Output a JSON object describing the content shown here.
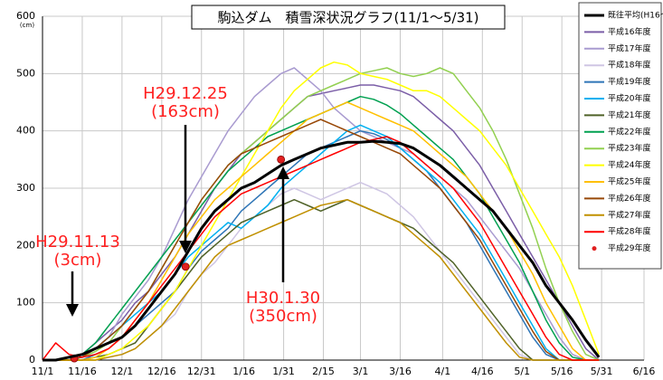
{
  "chart_data": {
    "type": "line",
    "title": "駒込ダム　積雪深状況グラフ(11/1～5/31)",
    "y_unit": "(cm)",
    "x": [
      0,
      5,
      10,
      15,
      20,
      25,
      30,
      35,
      40,
      45,
      50,
      55,
      60,
      65,
      70,
      75,
      80,
      85,
      90,
      95,
      100,
      105,
      110,
      115,
      120,
      125,
      130,
      135,
      140,
      145,
      150,
      155,
      160,
      165,
      170,
      175,
      180,
      185,
      190,
      195,
      200,
      205,
      210
    ],
    "xlim": [
      0,
      227
    ],
    "xticks": [
      {
        "value": 0,
        "label": "11/1"
      },
      {
        "value": 15,
        "label": "11/16"
      },
      {
        "value": 30,
        "label": "12/1"
      },
      {
        "value": 45,
        "label": "12/16"
      },
      {
        "value": 60,
        "label": "12/31"
      },
      {
        "value": 76,
        "label": "1/16"
      },
      {
        "value": 91,
        "label": "1/31"
      },
      {
        "value": 106,
        "label": "2/15"
      },
      {
        "value": 120,
        "label": "3/1"
      },
      {
        "value": 135,
        "label": "3/16"
      },
      {
        "value": 151,
        "label": "4/1"
      },
      {
        "value": 166,
        "label": "4/16"
      },
      {
        "value": 181,
        "label": "5/1"
      },
      {
        "value": 196,
        "label": "5/16"
      },
      {
        "value": 211,
        "label": "5/31"
      },
      {
        "value": 227,
        "label": "6/16"
      }
    ],
    "ylim": [
      0,
      600
    ],
    "yticks": [
      0,
      100,
      200,
      300,
      400,
      500,
      600
    ],
    "grid": true,
    "legend": "right",
    "series": [
      {
        "name": "既往平均(H16〜)",
        "color": "#000000",
        "width": 3,
        "values": [
          0,
          0,
          5,
          10,
          20,
          30,
          40,
          60,
          90,
          120,
          150,
          190,
          230,
          260,
          280,
          300,
          310,
          325,
          340,
          350,
          360,
          370,
          375,
          380,
          380,
          382,
          380,
          378,
          370,
          355,
          340,
          320,
          300,
          280,
          260,
          230,
          200,
          170,
          130,
          100,
          70,
          35,
          5
        ]
      },
      {
        "name": "平成16年度",
        "color": "#7b5ea7",
        "values": [
          0,
          0,
          0,
          10,
          30,
          50,
          70,
          100,
          120,
          150,
          180,
          220,
          260,
          300,
          330,
          360,
          380,
          400,
          420,
          440,
          460,
          465,
          470,
          475,
          480,
          480,
          475,
          470,
          460,
          440,
          420,
          400,
          370,
          340,
          300,
          260,
          220,
          180,
          140,
          100,
          60,
          20,
          0
        ]
      },
      {
        "name": "平成17年度",
        "color": "#a99bd0",
        "values": [
          0,
          0,
          0,
          5,
          20,
          40,
          80,
          110,
          140,
          180,
          230,
          280,
          320,
          360,
          400,
          430,
          460,
          480,
          500,
          510,
          490,
          470,
          440,
          420,
          400,
          390,
          380,
          370,
          360,
          340,
          320,
          300,
          280,
          250,
          220,
          190,
          160,
          120,
          80,
          40,
          10,
          0,
          0
        ]
      },
      {
        "name": "平成18年度",
        "color": "#cfc6e4",
        "values": [
          0,
          0,
          0,
          0,
          0,
          5,
          10,
          20,
          40,
          60,
          80,
          120,
          150,
          170,
          200,
          230,
          250,
          270,
          290,
          300,
          290,
          280,
          290,
          300,
          310,
          300,
          290,
          270,
          250,
          220,
          190,
          160,
          130,
          100,
          70,
          40,
          10,
          0,
          0,
          0,
          0,
          0,
          0
        ]
      },
      {
        "name": "平成19年度",
        "color": "#2e75b6",
        "values": [
          0,
          0,
          0,
          0,
          10,
          20,
          40,
          60,
          80,
          100,
          120,
          160,
          190,
          210,
          230,
          260,
          280,
          300,
          320,
          340,
          360,
          370,
          380,
          390,
          400,
          395,
          385,
          370,
          350,
          330,
          300,
          270,
          240,
          200,
          160,
          120,
          80,
          40,
          10,
          0,
          0,
          0,
          0
        ]
      },
      {
        "name": "平成20年度",
        "color": "#00b0f0",
        "values": [
          0,
          0,
          5,
          10,
          20,
          40,
          60,
          80,
          100,
          120,
          150,
          180,
          200,
          220,
          240,
          230,
          250,
          270,
          300,
          320,
          340,
          360,
          380,
          400,
          410,
          400,
          390,
          370,
          350,
          330,
          310,
          280,
          250,
          220,
          180,
          140,
          100,
          60,
          20,
          0,
          0,
          0,
          0
        ]
      },
      {
        "name": "平成21年度",
        "color": "#4f6228",
        "values": [
          0,
          0,
          0,
          0,
          5,
          10,
          20,
          30,
          60,
          90,
          120,
          150,
          180,
          200,
          220,
          240,
          250,
          260,
          270,
          280,
          270,
          260,
          270,
          280,
          270,
          260,
          250,
          240,
          230,
          210,
          190,
          170,
          140,
          110,
          80,
          50,
          20,
          0,
          0,
          0,
          0,
          0,
          0
        ]
      },
      {
        "name": "平成22年度",
        "color": "#00a050",
        "values": [
          0,
          0,
          0,
          10,
          30,
          60,
          90,
          120,
          150,
          180,
          210,
          240,
          270,
          300,
          330,
          350,
          370,
          390,
          400,
          410,
          420,
          430,
          440,
          450,
          460,
          455,
          445,
          430,
          410,
          390,
          370,
          350,
          320,
          290,
          250,
          210,
          170,
          120,
          70,
          30,
          5,
          0,
          0
        ]
      },
      {
        "name": "平成23年度",
        "color": "#92d050",
        "values": [
          0,
          0,
          0,
          5,
          15,
          30,
          60,
          90,
          120,
          160,
          200,
          240,
          280,
          310,
          340,
          360,
          380,
          400,
          420,
          440,
          460,
          470,
          480,
          490,
          500,
          505,
          510,
          500,
          495,
          500,
          510,
          500,
          470,
          440,
          400,
          350,
          290,
          230,
          160,
          100,
          50,
          10,
          0
        ]
      },
      {
        "name": "平成24年度",
        "color": "#ffff00",
        "values": [
          0,
          0,
          0,
          0,
          0,
          10,
          20,
          40,
          60,
          90,
          120,
          160,
          200,
          240,
          280,
          320,
          360,
          400,
          440,
          470,
          490,
          510,
          520,
          515,
          500,
          495,
          490,
          480,
          470,
          470,
          460,
          440,
          420,
          400,
          370,
          340,
          300,
          260,
          220,
          180,
          130,
          70,
          10
        ]
      },
      {
        "name": "平成25年度",
        "color": "#ffc000",
        "values": [
          0,
          0,
          0,
          0,
          5,
          20,
          40,
          70,
          100,
          140,
          180,
          220,
          250,
          280,
          300,
          320,
          340,
          360,
          380,
          400,
          420,
          430,
          440,
          450,
          440,
          430,
          420,
          410,
          400,
          380,
          360,
          340,
          320,
          290,
          260,
          230,
          190,
          150,
          100,
          60,
          20,
          0,
          0
        ]
      },
      {
        "name": "平成26年度",
        "color": "#984807",
        "values": [
          0,
          0,
          0,
          5,
          20,
          40,
          60,
          90,
          120,
          160,
          200,
          240,
          280,
          310,
          340,
          360,
          370,
          380,
          390,
          400,
          410,
          420,
          410,
          400,
          390,
          380,
          370,
          360,
          340,
          320,
          300,
          270,
          240,
          210,
          170,
          130,
          90,
          50,
          15,
          0,
          0,
          0,
          0
        ]
      },
      {
        "name": "平成27年度",
        "color": "#c09000",
        "values": [
          0,
          0,
          0,
          0,
          0,
          5,
          10,
          20,
          40,
          60,
          90,
          120,
          150,
          180,
          200,
          210,
          220,
          230,
          240,
          250,
          260,
          270,
          275,
          280,
          270,
          260,
          250,
          240,
          220,
          200,
          180,
          150,
          120,
          90,
          60,
          30,
          5,
          0,
          0,
          0,
          0,
          0,
          0
        ]
      },
      {
        "name": "平成28年度",
        "color": "#ff0000",
        "values": [
          0,
          30,
          10,
          5,
          10,
          20,
          40,
          70,
          100,
          130,
          160,
          190,
          220,
          250,
          270,
          290,
          300,
          310,
          320,
          330,
          340,
          350,
          360,
          370,
          380,
          385,
          390,
          380,
          360,
          340,
          320,
          300,
          270,
          240,
          200,
          160,
          120,
          80,
          40,
          10,
          0,
          0,
          0
        ]
      },
      {
        "name": "平成29年度",
        "color": "#e02020",
        "marker": "dot",
        "x": [
          12,
          54,
          90
        ],
        "values": [
          3,
          163,
          350
        ]
      }
    ],
    "annotations": [
      {
        "lines": [
          "H29.11.13",
          "(3cm)"
        ]
      },
      {
        "lines": [
          "H29.12.25",
          "(163cm)"
        ]
      },
      {
        "lines": [
          "H30.1.30",
          "(350cm)"
        ]
      }
    ]
  }
}
